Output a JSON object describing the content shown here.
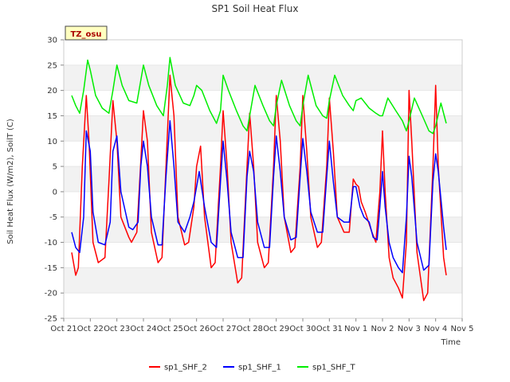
{
  "chart_data": {
    "type": "line",
    "title": "SP1 Soil Heat Flux",
    "xlabel": "Time",
    "ylabel": "Soil Heat Flux (W/m2), SoilT (C)",
    "badge": "TZ_osu",
    "ylim": [
      -25,
      30
    ],
    "yticks": [
      -25,
      -20,
      -15,
      -10,
      -5,
      0,
      5,
      10,
      15,
      20,
      25,
      30
    ],
    "xlim": [
      0,
      15
    ],
    "xticks": [
      {
        "x": 0,
        "label": "Oct 21"
      },
      {
        "x": 1,
        "label": "Oct 22"
      },
      {
        "x": 2,
        "label": "Oct 23"
      },
      {
        "x": 3,
        "label": "Oct 24"
      },
      {
        "x": 4,
        "label": "Oct 25"
      },
      {
        "x": 5,
        "label": "Oct 26"
      },
      {
        "x": 6,
        "label": "Oct 27"
      },
      {
        "x": 7,
        "label": "Oct 28"
      },
      {
        "x": 8,
        "label": "Oct 29"
      },
      {
        "x": 9,
        "label": "Oct 30"
      },
      {
        "x": 10,
        "label": "Oct 31"
      },
      {
        "x": 11,
        "label": "Nov 1"
      },
      {
        "x": 12,
        "label": "Nov 2"
      },
      {
        "x": 13,
        "label": "Nov 3"
      },
      {
        "x": 14,
        "label": "Nov 4"
      },
      {
        "x": 15,
        "label": "Nov 5"
      }
    ],
    "legend_position": "bottom",
    "series": [
      {
        "name": "sp1_SHF_2",
        "color": "#ff0000",
        "x": [
          0.3,
          0.45,
          0.55,
          0.7,
          0.85,
          0.95,
          1.1,
          1.3,
          1.55,
          1.7,
          1.85,
          2.0,
          2.15,
          2.45,
          2.55,
          2.75,
          2.9,
          3.0,
          3.15,
          3.3,
          3.55,
          3.7,
          3.85,
          4.0,
          4.15,
          4.3,
          4.55,
          4.7,
          4.9,
          5.0,
          5.15,
          5.3,
          5.55,
          5.7,
          5.9,
          6.0,
          6.15,
          6.3,
          6.55,
          6.7,
          6.9,
          7.0,
          7.15,
          7.3,
          7.55,
          7.7,
          7.9,
          8.0,
          8.15,
          8.3,
          8.55,
          8.7,
          8.9,
          9.0,
          9.15,
          9.3,
          9.55,
          9.7,
          9.9,
          10.0,
          10.15,
          10.3,
          10.55,
          10.75,
          10.9,
          11.0,
          11.1,
          11.2,
          11.35,
          11.6,
          11.75,
          11.9,
          12.0,
          12.1,
          12.25,
          12.4,
          12.6,
          12.75,
          12.9,
          13.0,
          13.1,
          13.3,
          13.55,
          13.7,
          13.9,
          14.0,
          14.1,
          14.3,
          14.4
        ],
        "y": [
          -12,
          -16.5,
          -15,
          5,
          19,
          10,
          -10,
          -14,
          -13,
          2,
          18,
          10,
          -5,
          -9,
          -10,
          -8,
          6,
          16,
          10,
          -8,
          -14,
          -13,
          5,
          23,
          15,
          -5,
          -10.5,
          -10,
          -3,
          5,
          9,
          -5,
          -15,
          -14,
          5,
          16,
          5,
          -10,
          -18,
          -17,
          5,
          15.5,
          5,
          -10,
          -15,
          -14,
          5,
          19,
          10,
          -5,
          -12,
          -11,
          5,
          19,
          8,
          -5,
          -11,
          -10,
          5,
          18.5,
          8,
          -5,
          -8,
          -8,
          2.5,
          1.5,
          1,
          -2,
          -4,
          -8,
          -10,
          0,
          12,
          0,
          -13,
          -17,
          -19,
          -21,
          -10,
          20,
          10,
          -12,
          -21.5,
          -20,
          5,
          21,
          5,
          -13,
          -16.5
        ]
      },
      {
        "name": "sp1_SHF_1",
        "color": "#0000ff",
        "x": [
          0.3,
          0.45,
          0.6,
          0.75,
          0.85,
          1.0,
          1.1,
          1.3,
          1.55,
          1.75,
          1.85,
          2.0,
          2.15,
          2.45,
          2.6,
          2.8,
          2.9,
          3.0,
          3.15,
          3.3,
          3.55,
          3.7,
          3.85,
          4.0,
          4.15,
          4.3,
          4.55,
          4.75,
          4.9,
          5.0,
          5.1,
          5.3,
          5.55,
          5.75,
          5.9,
          6.0,
          6.15,
          6.3,
          6.55,
          6.75,
          6.9,
          7.0,
          7.15,
          7.3,
          7.55,
          7.75,
          7.9,
          8.0,
          8.15,
          8.3,
          8.55,
          8.75,
          8.9,
          9.0,
          9.15,
          9.3,
          9.55,
          9.75,
          9.9,
          10.0,
          10.15,
          10.3,
          10.55,
          10.75,
          10.9,
          11.0,
          11.15,
          11.3,
          11.5,
          11.65,
          11.8,
          11.9,
          12.0,
          12.1,
          12.25,
          12.4,
          12.6,
          12.75,
          12.9,
          13.0,
          13.1,
          13.3,
          13.55,
          13.75,
          13.9,
          14.0,
          14.1,
          14.3,
          14.4
        ],
        "y": [
          -8,
          -11,
          -12,
          -5,
          12,
          8,
          -4,
          -10,
          -10.5,
          -6,
          8,
          11,
          0,
          -7,
          -7.5,
          -6,
          5,
          10,
          5,
          -5,
          -10.5,
          -10.5,
          3,
          14,
          5,
          -6,
          -8,
          -5,
          -2,
          1,
          4,
          -3,
          -10,
          -11,
          2,
          10,
          2,
          -8,
          -13,
          -13,
          3,
          8,
          4,
          -6,
          -11,
          -11,
          3,
          11,
          4,
          -5,
          -9.5,
          -9,
          3,
          10.5,
          4,
          -4,
          -8,
          -8,
          3,
          10,
          2,
          -5,
          -6,
          -6,
          1,
          1,
          -3,
          -5,
          -6,
          -9,
          -9.5,
          -3,
          4,
          -3,
          -10,
          -13,
          -15,
          -16,
          -5,
          7,
          3,
          -10,
          -15.5,
          -14.5,
          2,
          7.5,
          4,
          -7,
          -11.5
        ]
      },
      {
        "name": "sp1_SHF_T",
        "color": "#00ee00",
        "x": [
          0.3,
          0.45,
          0.6,
          0.75,
          0.9,
          1.0,
          1.2,
          1.45,
          1.7,
          1.85,
          2.0,
          2.2,
          2.45,
          2.75,
          2.9,
          3.0,
          3.2,
          3.5,
          3.75,
          3.9,
          4.0,
          4.2,
          4.5,
          4.75,
          4.9,
          5.0,
          5.2,
          5.5,
          5.75,
          5.9,
          6.0,
          6.2,
          6.5,
          6.75,
          6.9,
          7.0,
          7.2,
          7.5,
          7.75,
          7.9,
          8.0,
          8.2,
          8.5,
          8.75,
          8.9,
          9.0,
          9.2,
          9.5,
          9.75,
          9.9,
          10.0,
          10.2,
          10.5,
          10.75,
          10.9,
          11.0,
          11.2,
          11.5,
          11.75,
          11.9,
          12.0,
          12.2,
          12.5,
          12.75,
          12.9,
          13.0,
          13.2,
          13.5,
          13.75,
          13.9,
          14.0,
          14.2,
          14.4
        ],
        "y": [
          19,
          17,
          15.5,
          20,
          26,
          24,
          19,
          16.5,
          15.5,
          20,
          25,
          21,
          18,
          17.5,
          22,
          25,
          21,
          17,
          15,
          21,
          26.5,
          21,
          17.5,
          17,
          19,
          21,
          20,
          16,
          13.5,
          16,
          23,
          20,
          16,
          13,
          12,
          15,
          21,
          17,
          14,
          13,
          17,
          22,
          17,
          14,
          13,
          17,
          23,
          17,
          15,
          14.5,
          18,
          23,
          19,
          17,
          16,
          18,
          18.5,
          16.5,
          15.5,
          15,
          15,
          18.5,
          16,
          14,
          12,
          14,
          18.5,
          15,
          12,
          11.5,
          13,
          17.5,
          13.5
        ]
      }
    ]
  }
}
